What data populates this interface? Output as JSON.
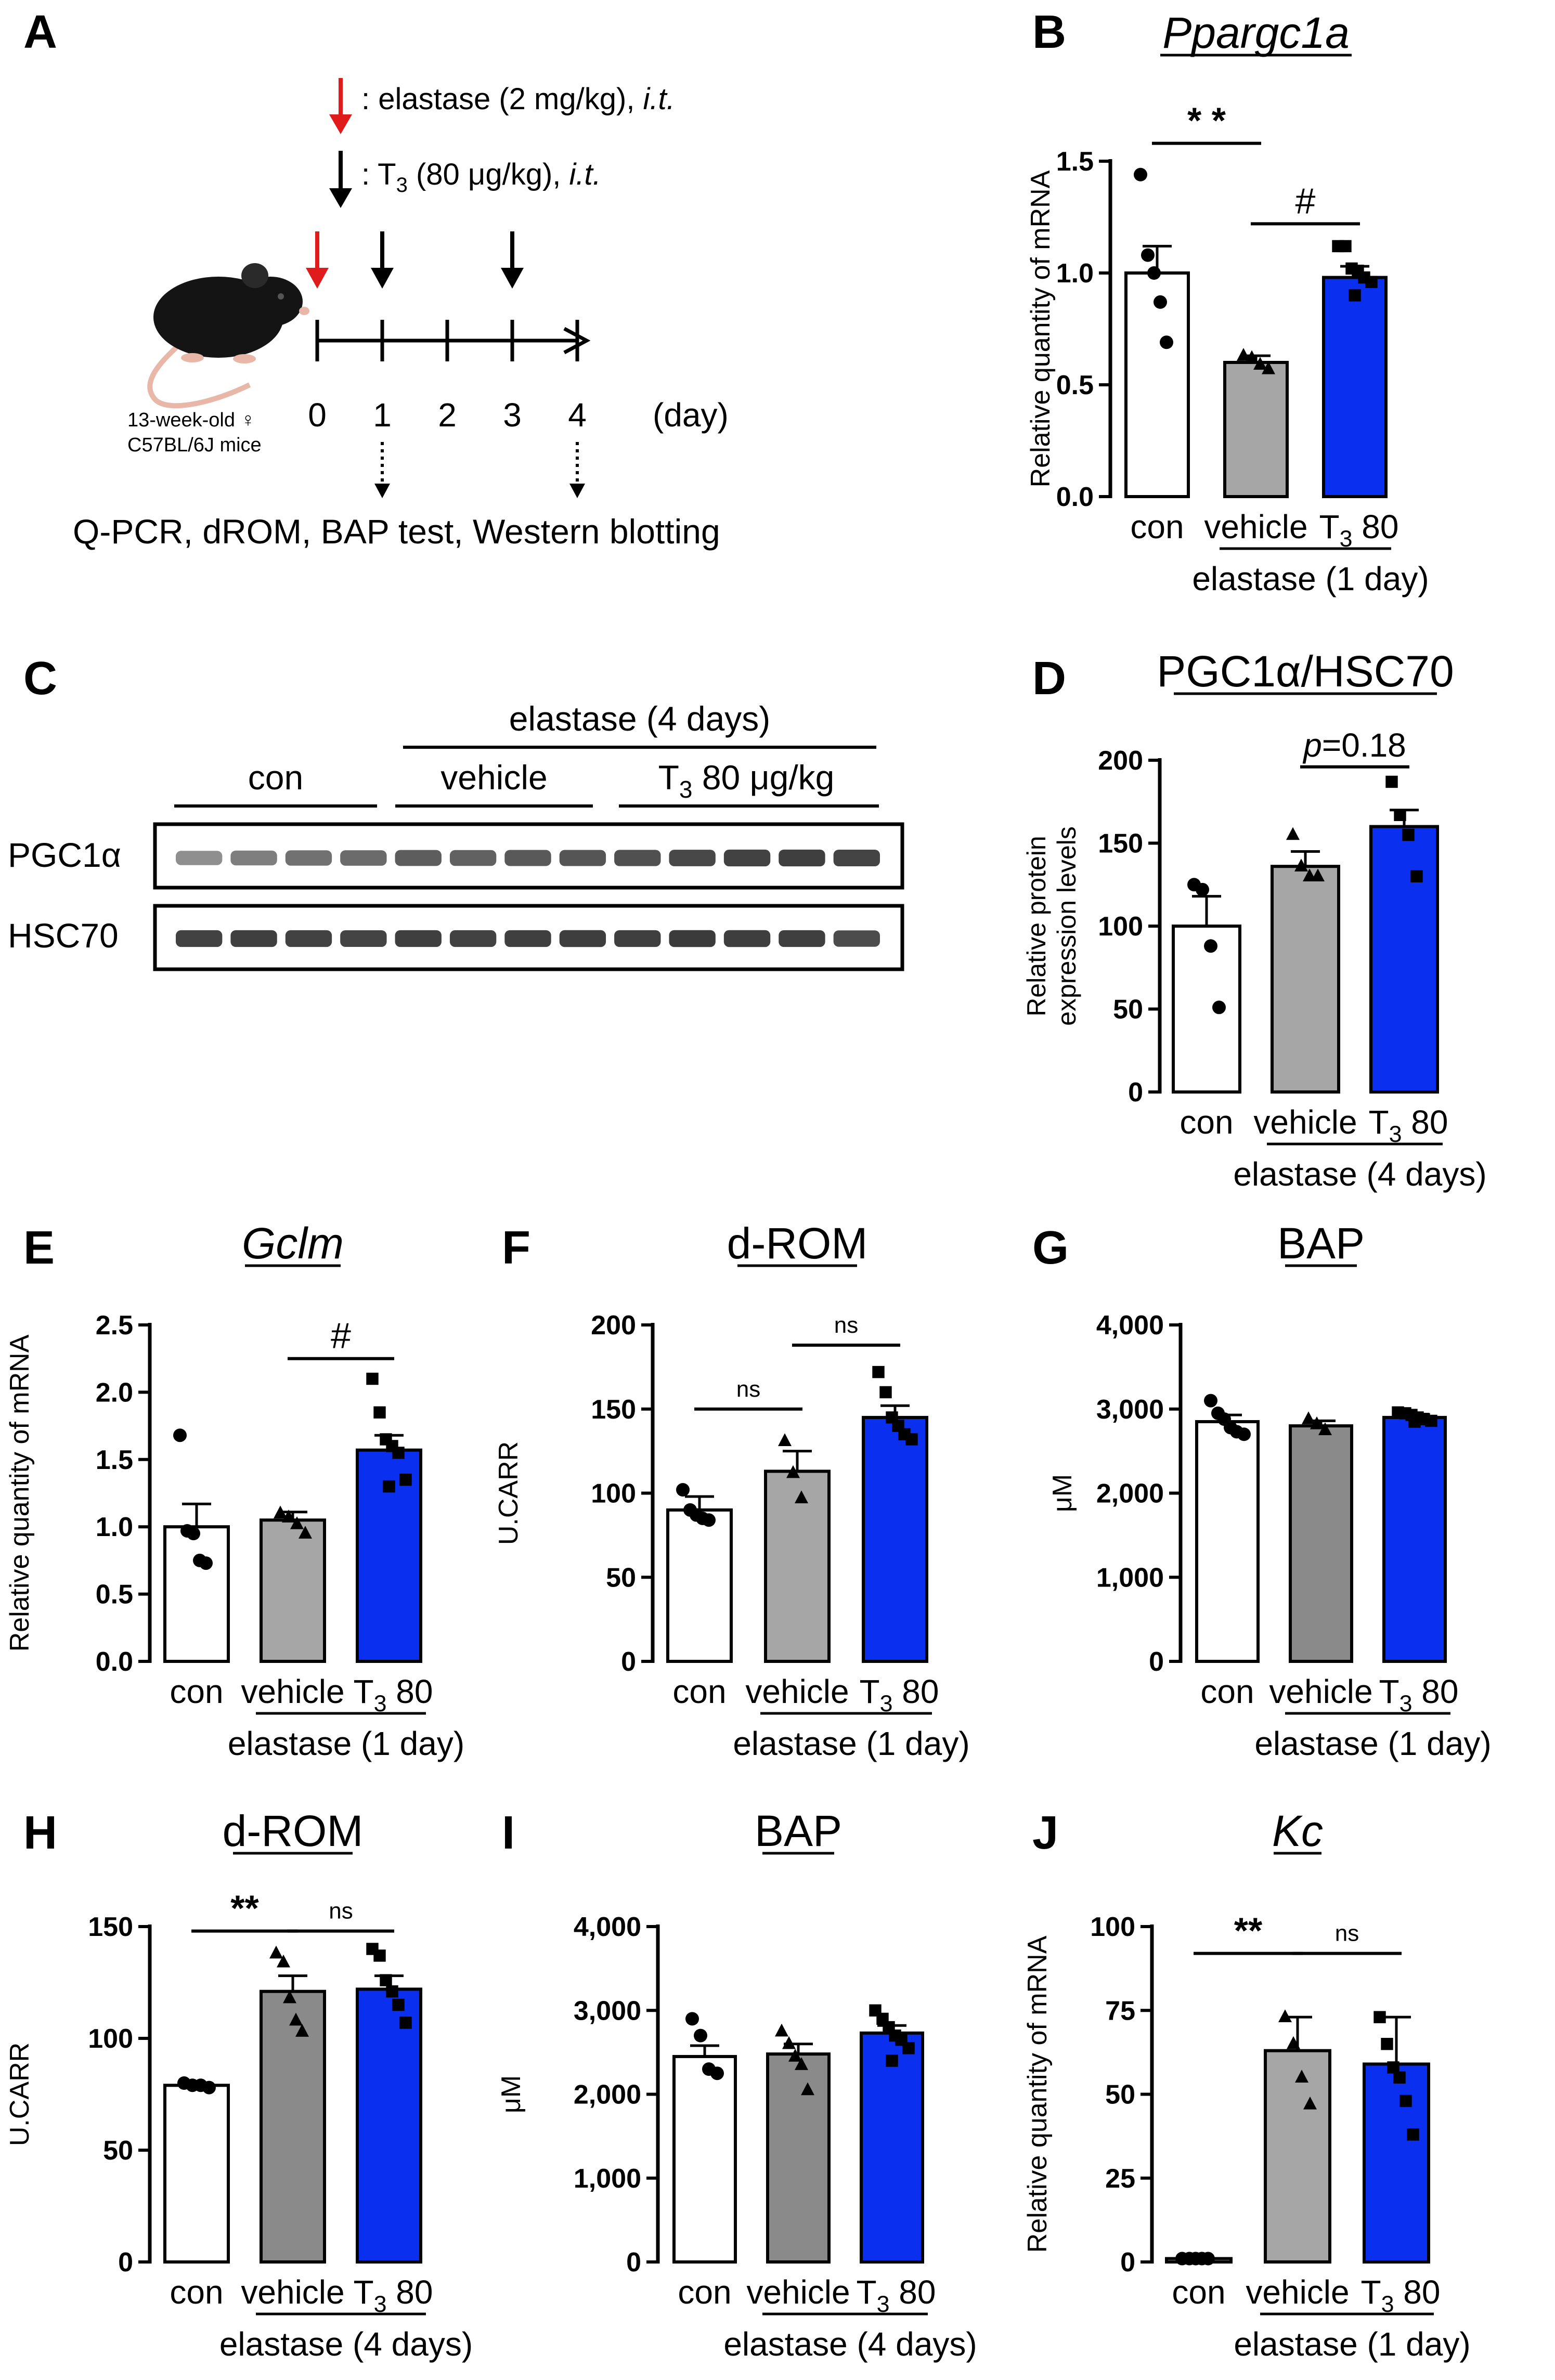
{
  "colors": {
    "con": "#ffffff",
    "vehicle_light": "#a6a6a6",
    "vehicle_dark": "#8a8a8a",
    "t3": "#0b2fee",
    "red_arrow": "#e01b1b"
  },
  "panelA": {
    "letter": "A",
    "legend_elastase": ": elastase (2 mg/kg), ",
    "legend_t3_prefix": ": T",
    "legend_t3_sub": "3",
    "legend_t3_suffix": " (80 μg/kg), ",
    "legend_it": "i.t.",
    "days": [
      "0",
      "1",
      "2",
      "3",
      "4"
    ],
    "day_unit": "(day)",
    "mouse_line1": "13-week-old ♀",
    "mouse_line2": "C57BL/6J mice",
    "assays": "Q-PCR, dROM, BAP test, Western blotting",
    "elastase_injection_days": [
      0
    ],
    "t3_injection_days": [
      1,
      3
    ],
    "sampling_days": [
      1,
      4
    ]
  },
  "panelC": {
    "letter": "C",
    "header": "elastase (4 days)",
    "groups": [
      "con",
      "vehicle",
      "T3 80 μg/kg"
    ],
    "group_t3_prefix": "T",
    "group_t3_sub": "3",
    "group_t3_suffix": " 80 μg/kg",
    "rows": [
      "PGC1α",
      "HSC70"
    ],
    "lanes_per_row": 13,
    "pgc1a_intensity": [
      0.45,
      0.55,
      0.62,
      0.65,
      0.72,
      0.7,
      0.74,
      0.76,
      0.78,
      0.82,
      0.85,
      0.86,
      0.84
    ],
    "hsc70_intensity": [
      0.85,
      0.86,
      0.85,
      0.84,
      0.86,
      0.85,
      0.86,
      0.87,
      0.86,
      0.88,
      0.87,
      0.86,
      0.8
    ]
  },
  "xlabels": {
    "con": "con",
    "vehicle": "vehicle",
    "t3_prefix": "T",
    "t3_sub": "3",
    "t3_suffix": " 80"
  },
  "chart_data": [
    {
      "id": "B",
      "type": "bar",
      "letter": "B",
      "title": "Ppargc1a",
      "italic": true,
      "underline": true,
      "ylabel": "Relative quantity of mRNA",
      "ylim": [
        0,
        1.5
      ],
      "ticks": [
        "0.0",
        "0.5",
        "1.0",
        "1.5"
      ],
      "tick_values": [
        0,
        0.5,
        1.0,
        1.5
      ],
      "categories": [
        "con",
        "vehicle",
        "T3 80"
      ],
      "values": [
        1.0,
        0.6,
        0.98
      ],
      "sem": [
        0.12,
        0.03,
        0.05
      ],
      "points": [
        [
          1.44,
          1.08,
          1.0,
          0.87,
          0.69
        ],
        [
          0.63,
          0.62,
          0.59,
          0.57
        ],
        [
          1.12,
          1.12,
          1.02,
          1.01,
          0.98,
          0.96,
          0.9
        ]
      ],
      "markers": [
        "circle",
        "triangle",
        "square"
      ],
      "group_label": "elastase (1 day)",
      "sig": [
        {
          "from": 0,
          "to": 1,
          "label": "* *",
          "y": 1.58
        },
        {
          "from": 1,
          "to": 2,
          "label": "#",
          "y": 1.22
        }
      ]
    },
    {
      "id": "D",
      "type": "bar",
      "letter": "D",
      "title": "PGC1α/HSC70",
      "italic": false,
      "underline": true,
      "ylabel": "Relative protein expression levels",
      "ylim": [
        0,
        200
      ],
      "ticks": [
        "0",
        "50",
        "100",
        "150",
        "200"
      ],
      "tick_values": [
        0,
        50,
        100,
        150,
        200
      ],
      "categories": [
        "con",
        "vehicle",
        "T3 80"
      ],
      "values": [
        100,
        136,
        160
      ],
      "sem": [
        18,
        9,
        10
      ],
      "points": [
        [
          125,
          122,
          88,
          51
        ],
        [
          155,
          136,
          130,
          130
        ],
        [
          187,
          167,
          155,
          130
        ]
      ],
      "markers": [
        "circle",
        "triangle",
        "square"
      ],
      "group_label": "elastase (4 days)",
      "sig": [
        {
          "from": 1,
          "to": 2,
          "label": "p=0.18",
          "y": 196
        }
      ]
    },
    {
      "id": "E",
      "type": "bar",
      "letter": "E",
      "title": "Gclm",
      "italic": true,
      "underline": true,
      "ylabel": "Relative quantity of mRNA",
      "ylim": [
        0,
        2.5
      ],
      "ticks": [
        "0.0",
        "0.5",
        "1.0",
        "1.5",
        "2.0",
        "2.5"
      ],
      "tick_values": [
        0,
        0.5,
        1.0,
        1.5,
        2.0,
        2.5
      ],
      "categories": [
        "con",
        "vehicle",
        "T3 80"
      ],
      "values": [
        1.0,
        1.05,
        1.57
      ],
      "sem": [
        0.17,
        0.06,
        0.11
      ],
      "points": [
        [
          1.68,
          0.97,
          0.95,
          0.75,
          0.73
        ],
        [
          1.1,
          1.07,
          1.02,
          0.95
        ],
        [
          2.1,
          1.85,
          1.65,
          1.6,
          1.55,
          1.35,
          1.3
        ]
      ],
      "markers": [
        "circle",
        "triangle",
        "square"
      ],
      "group_label": "elastase (1 day)",
      "sig": [
        {
          "from": 1,
          "to": 2,
          "label": "#",
          "y": 2.25
        }
      ]
    },
    {
      "id": "F",
      "type": "bar",
      "letter": "F",
      "title": "d-ROM",
      "italic": false,
      "underline": true,
      "ylabel": "U.CARR",
      "ylim": [
        0,
        200
      ],
      "ticks": [
        "0",
        "50",
        "100",
        "150",
        "200"
      ],
      "tick_values": [
        0,
        50,
        100,
        150,
        200
      ],
      "categories": [
        "con",
        "vehicle",
        "T3 80"
      ],
      "values": [
        90,
        113,
        145
      ],
      "sem": [
        8,
        12,
        7
      ],
      "points": [
        [
          102,
          90,
          87,
          85,
          84
        ],
        [
          131,
          112,
          97
        ],
        [
          172,
          160,
          145,
          140,
          135,
          132
        ]
      ],
      "markers": [
        "circle",
        "triangle",
        "square"
      ],
      "group_label": "elastase (1 day)",
      "sig": [
        {
          "from": 0,
          "to": 1,
          "label": "ns",
          "y": 150
        },
        {
          "from": 1,
          "to": 2,
          "label": "ns",
          "y": 188
        }
      ]
    },
    {
      "id": "G",
      "type": "bar",
      "letter": "G",
      "title": "BAP",
      "italic": false,
      "underline": true,
      "ylabel": "μM",
      "ylim": [
        0,
        4000
      ],
      "ticks": [
        "0",
        "1,000",
        "2,000",
        "3,000",
        "4,000"
      ],
      "tick_values": [
        0,
        1000,
        2000,
        3000,
        4000
      ],
      "categories": [
        "con",
        "vehicle",
        "T3 80"
      ],
      "values": [
        2850,
        2800,
        2900
      ],
      "sem": [
        80,
        60,
        40
      ],
      "points": [
        [
          3100,
          2950,
          2880,
          2780,
          2730,
          2700
        ],
        [
          2880,
          2820,
          2750
        ],
        [
          2960,
          2950,
          2930,
          2900,
          2880,
          2860,
          2850
        ]
      ],
      "markers": [
        "circle",
        "triangle",
        "square"
      ],
      "group_label": "elastase (1 day)",
      "sig": []
    },
    {
      "id": "H",
      "type": "bar",
      "letter": "H",
      "title": "d-ROM",
      "italic": false,
      "underline": true,
      "ylabel": "U.CARR",
      "ylim": [
        0,
        150
      ],
      "ticks": [
        "0",
        "50",
        "100",
        "150"
      ],
      "tick_values": [
        0,
        50,
        100,
        150
      ],
      "categories": [
        "con",
        "vehicle",
        "T3 80"
      ],
      "values": [
        79,
        121,
        122
      ],
      "sem": [
        1,
        7,
        6
      ],
      "points": [
        [
          80,
          79,
          79,
          78
        ],
        [
          138,
          134,
          118,
          108,
          103
        ],
        [
          140,
          137,
          126,
          121,
          115,
          107
        ]
      ],
      "markers": [
        "circle",
        "triangle",
        "square"
      ],
      "group_label": "elastase (4 days)",
      "sig": [
        {
          "from": 0,
          "to": 1,
          "label": "**",
          "y": 148
        },
        {
          "from": 1,
          "to": 2,
          "label": "ns",
          "y": 148
        }
      ]
    },
    {
      "id": "I",
      "type": "bar",
      "letter": "I",
      "title": "BAP",
      "italic": false,
      "underline": true,
      "ylabel": "μM",
      "ylim": [
        0,
        4000
      ],
      "ticks": [
        "0",
        "1,000",
        "2,000",
        "3,000",
        "4,000"
      ],
      "tick_values": [
        0,
        1000,
        2000,
        3000,
        4000
      ],
      "categories": [
        "con",
        "vehicle",
        "T3 80"
      ],
      "values": [
        2450,
        2480,
        2730
      ],
      "sem": [
        130,
        120,
        90
      ],
      "points": [
        [
          2900,
          2700,
          2300,
          2250
        ],
        [
          2750,
          2600,
          2450,
          2350,
          2050
        ],
        [
          3000,
          2900,
          2800,
          2700,
          2650,
          2550,
          2400
        ]
      ],
      "markers": [
        "circle",
        "triangle",
        "square"
      ],
      "group_label": "elastase (4 days)",
      "sig": []
    },
    {
      "id": "J",
      "type": "bar",
      "letter": "J",
      "title": "Kc",
      "italic": true,
      "underline": true,
      "ylabel": "Relative quantity of mRNA",
      "ylim": [
        0,
        100
      ],
      "ticks": [
        "0",
        "25",
        "50",
        "75",
        "100"
      ],
      "tick_values": [
        0,
        25,
        50,
        75,
        100
      ],
      "categories": [
        "con",
        "vehicle",
        "T3 80"
      ],
      "values": [
        1,
        63,
        59
      ],
      "sem": [
        0.3,
        10,
        14
      ],
      "points": [
        [
          1,
          1,
          1,
          1,
          1
        ],
        [
          73,
          65,
          55,
          47
        ],
        [
          73,
          65,
          58,
          55,
          48,
          38
        ]
      ],
      "markers": [
        "circle",
        "triangle",
        "square"
      ],
      "group_label": "elastase (1 day)",
      "sig": [
        {
          "from": 0,
          "to": 1,
          "label": "**",
          "y": 92
        },
        {
          "from": 1,
          "to": 2,
          "label": "ns",
          "y": 92
        }
      ]
    }
  ]
}
